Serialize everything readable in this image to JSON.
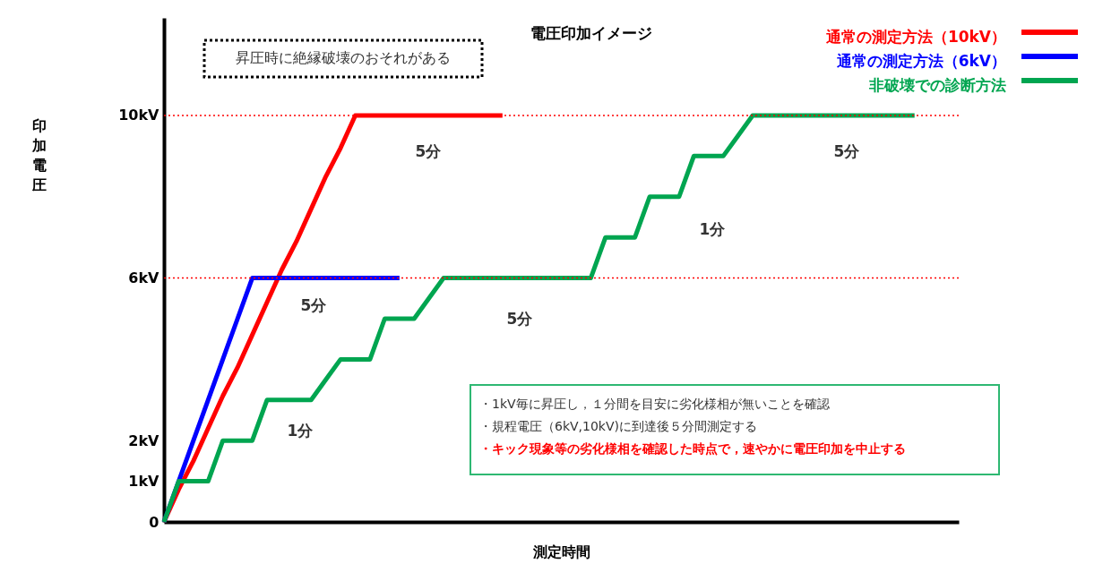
{
  "chart_data": {
    "type": "line",
    "title": "電圧印加イメージ",
    "xlabel": "測定時間",
    "ylabel": "印加電圧",
    "categories": [
      null,
      null,
      null,
      null,
      null,
      null,
      null,
      null,
      null,
      null,
      null,
      null,
      null,
      null,
      null,
      null,
      null,
      null,
      null,
      null,
      null,
      null,
      null,
      null,
      null,
      null,
      null,
      null,
      null,
      null,
      null,
      null,
      null,
      null,
      null,
      null,
      null,
      null,
      null,
      null,
      null,
      null,
      null,
      null,
      null,
      null,
      null,
      null,
      null,
      null,
      null,
      null,
      null,
      null,
      null
    ],
    "ylim": [
      0,
      12.4
    ],
    "yticks": [
      0,
      {
        "value": 1,
        "label": "1kV"
      },
      {
        "value": 2,
        "label": "2kV"
      },
      {
        "value": 6,
        "label": "6kV"
      },
      {
        "value": 10,
        "label": "10kV"
      }
    ],
    "tick_labels": "y",
    "grid": false,
    "legend": "top right",
    "line_style": "solid",
    "series": [
      {
        "name": "通常の測定方法（10kV）",
        "color": "#ff0000",
        "values": [
          0,
          0.8,
          1.5,
          2.3,
          3.1,
          3.8,
          4.6,
          5.4,
          6.2,
          6.9,
          7.7,
          8.5,
          9.2,
          10,
          10,
          10,
          10,
          10,
          10,
          10,
          10,
          10,
          10,
          10,
          null,
          null,
          null,
          null,
          null,
          null,
          null,
          null,
          null,
          null,
          null,
          null,
          null,
          null,
          null,
          null,
          null,
          null,
          null,
          null,
          null,
          null,
          null,
          null,
          null,
          null,
          null,
          null,
          null,
          null,
          null
        ]
      },
      {
        "name": "通常の測定方法（6kV）",
        "color": "#0000ff",
        "values": [
          0,
          1,
          2,
          3,
          4,
          5,
          6,
          6,
          6,
          6,
          6,
          6,
          6,
          6,
          6,
          6,
          6,
          null,
          null,
          null,
          null,
          null,
          null,
          null,
          null,
          null,
          null,
          null,
          null,
          null,
          null,
          null,
          null,
          null,
          null,
          null,
          null,
          null,
          null,
          null,
          null,
          null,
          null,
          null,
          null,
          null,
          null,
          null,
          null,
          null,
          null,
          null,
          null,
          null,
          null
        ]
      },
      {
        "name": "非破壊での診断方法",
        "color": "#00a550",
        "values": [
          0,
          1,
          1,
          1,
          2,
          2,
          2,
          3,
          3,
          3,
          3,
          3.5,
          4,
          4,
          4,
          5,
          5,
          5,
          5.5,
          6,
          6,
          6,
          6,
          6,
          6,
          6,
          6,
          6,
          6,
          6,
          7,
          7,
          7,
          8,
          8,
          8,
          9,
          9,
          9,
          9.5,
          10,
          10,
          10,
          10,
          10,
          10,
          10,
          10,
          10,
          10,
          10,
          10,
          null,
          null,
          null
        ]
      }
    ],
    "ref_lines": [
      {
        "axis": "y",
        "value": 10,
        "color": "#ff0000",
        "line_style": "dotted"
      },
      {
        "axis": "y",
        "value": 6,
        "color": "#ff0000",
        "line_style": "dotted"
      }
    ],
    "annotations": [
      "昇圧時に絶縁破壊のおそれがある",
      "5分",
      "5分",
      "5分",
      "5分",
      "1分",
      "1分",
      "・1kV毎に昇圧し，１分間を目安に劣化様相が無いことを確認",
      "・規程電圧（6kV,10kV)に到達後５分間測定する",
      "・キック現象等の劣化様相を確認した時点で，速やかに電圧印加を中止する"
    ]
  }
}
